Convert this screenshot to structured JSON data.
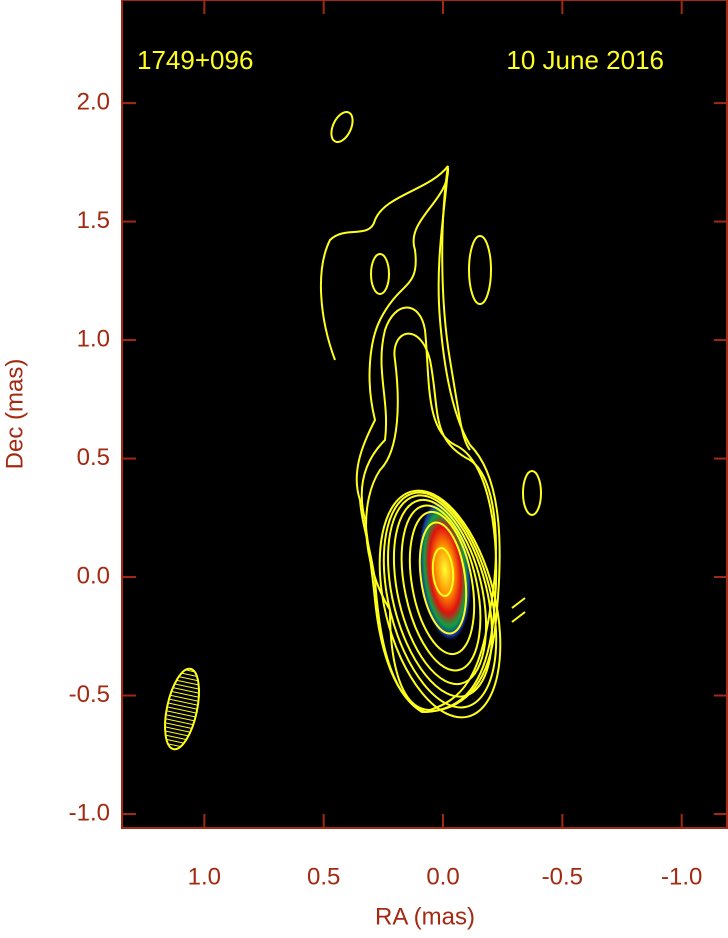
{
  "chart_data": {
    "type": "contour",
    "annotations": [
      "1749+096",
      "10 June 2016"
    ],
    "xlabel": "RA (mas)",
    "ylabel": "Dec (mas)",
    "xlim": [
      1.345,
      -1.194
    ],
    "ylim": [
      -1.059,
      2.435
    ],
    "xticks": [
      {
        "value": 1,
        "label": "1.0"
      },
      0.5,
      {
        "value": 0,
        "label": "0.0"
      },
      -0.5,
      {
        "value": -1,
        "label": "-1.0"
      }
    ],
    "yticks": [
      {
        "value": 2,
        "label": "2.0"
      },
      1.5,
      {
        "value": 1,
        "label": "1.0"
      },
      0.5,
      {
        "value": 0,
        "label": "0.0"
      },
      -0.5,
      {
        "value": -1,
        "label": "-1.0"
      }
    ]
  }
}
